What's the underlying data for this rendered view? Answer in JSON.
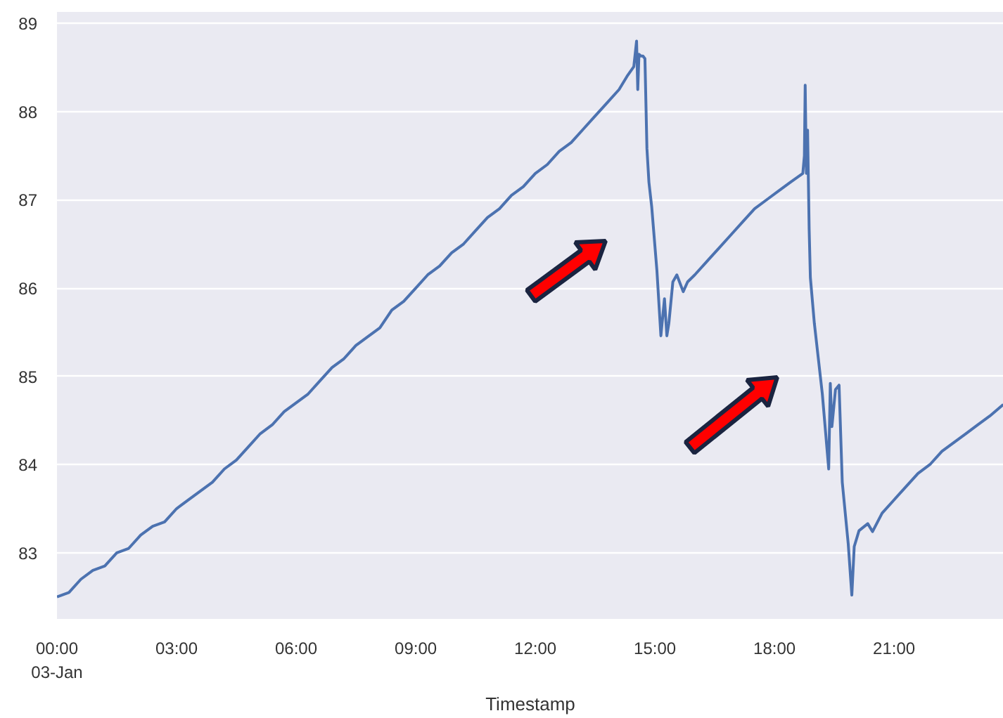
{
  "chart_data": {
    "type": "line",
    "xlabel": "Timestamp",
    "x": [
      0,
      0.3,
      0.6,
      0.9,
      1.2,
      1.5,
      1.8,
      2.1,
      2.4,
      2.7,
      3.0,
      3.3,
      3.6,
      3.9,
      4.2,
      4.5,
      4.8,
      5.1,
      5.4,
      5.7,
      6.0,
      6.3,
      6.6,
      6.9,
      7.2,
      7.5,
      7.8,
      8.1,
      8.4,
      8.7,
      9.0,
      9.3,
      9.6,
      9.9,
      10.2,
      10.5,
      10.8,
      11.1,
      11.4,
      11.7,
      12.0,
      12.3,
      12.6,
      12.9,
      13.2,
      13.5,
      13.8,
      14.1,
      14.3,
      14.47,
      14.54,
      14.57,
      14.6,
      14.65,
      14.7,
      14.75,
      14.8,
      14.85,
      14.92,
      15.05,
      15.15,
      15.24,
      15.3,
      15.35,
      15.45,
      15.55,
      15.71,
      15.82,
      16.0,
      16.3,
      16.6,
      16.9,
      17.2,
      17.5,
      17.8,
      18.1,
      18.4,
      18.71,
      18.75,
      18.77,
      18.8,
      18.83,
      18.87,
      18.9,
      19.0,
      19.2,
      19.36,
      19.4,
      19.44,
      19.53,
      19.62,
      19.7,
      19.85,
      19.94,
      20.0,
      20.12,
      20.34,
      20.46,
      20.7,
      21.0,
      21.3,
      21.6,
      21.9,
      22.2,
      22.5,
      22.8,
      23.1,
      23.4,
      23.74
    ],
    "values": [
      82.5,
      82.55,
      82.7,
      82.8,
      82.85,
      83.0,
      83.05,
      83.2,
      83.3,
      83.35,
      83.5,
      83.6,
      83.7,
      83.8,
      83.95,
      84.05,
      84.2,
      84.35,
      84.45,
      84.6,
      84.7,
      84.8,
      84.95,
      85.1,
      85.2,
      85.35,
      85.45,
      85.55,
      85.75,
      85.85,
      86.0,
      86.15,
      86.25,
      86.4,
      86.5,
      86.65,
      86.8,
      86.9,
      87.05,
      87.15,
      87.3,
      87.4,
      87.55,
      87.65,
      87.8,
      87.95,
      88.1,
      88.25,
      88.4,
      88.51,
      88.8,
      88.25,
      88.65,
      88.63,
      88.63,
      88.6,
      87.58,
      87.2,
      86.92,
      86.2,
      85.46,
      85.88,
      85.46,
      85.6,
      86.07,
      86.15,
      85.96,
      86.07,
      86.15,
      86.3,
      86.45,
      86.6,
      86.75,
      86.9,
      87.0,
      87.1,
      87.2,
      87.3,
      87.5,
      88.3,
      87.3,
      87.79,
      86.66,
      86.12,
      85.6,
      84.8,
      83.95,
      84.92,
      84.43,
      84.85,
      84.9,
      83.8,
      83.1,
      82.52,
      83.07,
      83.25,
      83.33,
      83.24,
      83.45,
      83.6,
      83.75,
      83.9,
      84.0,
      84.15,
      84.25,
      84.35,
      84.45,
      84.55,
      84.68
    ],
    "color": "#4c72b0",
    "xlim": [
      0,
      23.75
    ],
    "ylim": [
      82.25,
      89.13
    ],
    "xticks": [
      {
        "value": 0,
        "label": "00:00\n03-Jan"
      },
      {
        "value": 3,
        "label": "03:00"
      },
      {
        "value": 6,
        "label": "06:00"
      },
      {
        "value": 9,
        "label": "09:00"
      },
      {
        "value": 12,
        "label": "12:00"
      },
      {
        "value": 15,
        "label": "15:00"
      },
      {
        "value": 18,
        "label": "18:00"
      },
      {
        "value": 21,
        "label": "21:00"
      }
    ],
    "yticks": [
      83,
      84,
      85,
      86,
      87,
      88,
      89
    ],
    "grid": "y",
    "marker": "none",
    "line_style": "solid"
  }
}
